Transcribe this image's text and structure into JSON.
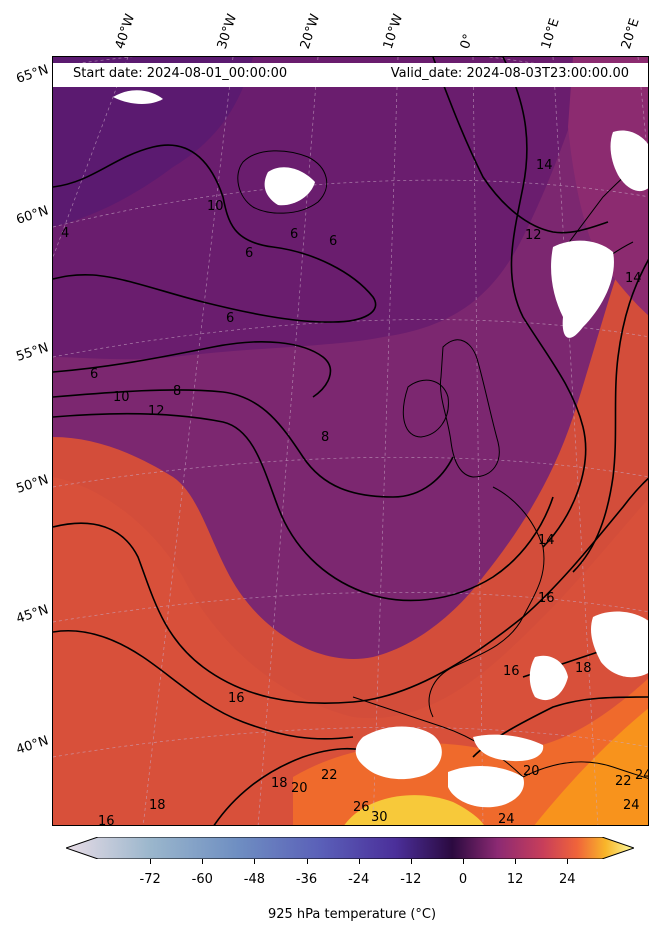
{
  "header": {
    "start_date": "Start date: 2024-08-01_00:00:00",
    "valid_date": "Valid_date: 2024-08-03T23:00:00.00"
  },
  "lon_labels": [
    "40°W",
    "30°W",
    "20°W",
    "10°W",
    "0°",
    "10°E",
    "20°E"
  ],
  "lat_labels": [
    "65°N",
    "60°N",
    "55°N",
    "50°N",
    "45°N",
    "40°N"
  ],
  "colorbar": {
    "label": "925 hPa temperature ($^\\circ$C)",
    "label_display": "925 hPa temperature (°C)",
    "ticks": [
      "-72",
      "-60",
      "-48",
      "-36",
      "-24",
      "-12",
      "0",
      "12",
      "24"
    ],
    "tick_values": [
      -72,
      -60,
      -48,
      -36,
      -24,
      -12,
      0,
      12,
      24
    ],
    "vmin": -84,
    "vmax": 32,
    "extend": "both",
    "colormap": "inferno-like diverging",
    "colors": [
      "#e8dce6",
      "#9ab6cc",
      "#6f8fc2",
      "#5a5fb8",
      "#4b2f9a",
      "#3b1060",
      "#5a1a6e",
      "#8c2a73",
      "#c83e5a",
      "#f0643a",
      "#f89a1e",
      "#fcd23c",
      "#fcfca0"
    ]
  },
  "contour_labels": [
    "4",
    "10",
    "6",
    "6",
    "6",
    "6",
    "6",
    "8",
    "10",
    "12",
    "8",
    "14",
    "12",
    "14",
    "14",
    "16",
    "16",
    "18",
    "16",
    "18",
    "20",
    "22",
    "24",
    "16",
    "18",
    "22",
    "26",
    "20",
    "30",
    "24",
    "24"
  ],
  "missing_color": "#ffffff"
}
